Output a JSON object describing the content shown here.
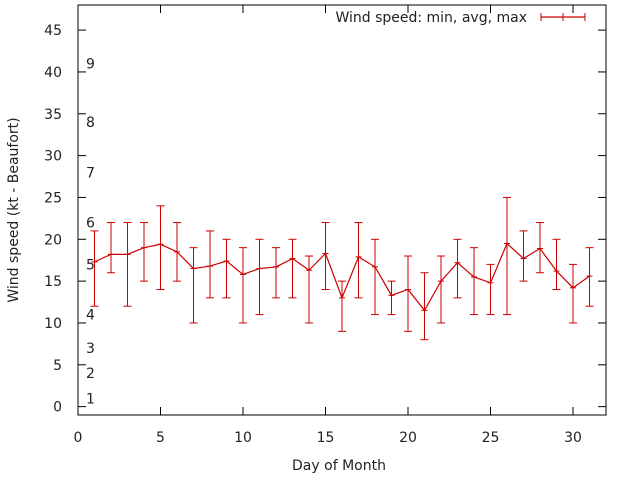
{
  "chart_data": {
    "type": "line",
    "xlabel": "Day of Month",
    "ylabel": "Wind speed (kt - Beaufort)",
    "xlim": [
      0,
      32
    ],
    "ylim": [
      -1,
      48
    ],
    "xticks": [
      "0",
      "5",
      "10",
      "15",
      "20",
      "25",
      "30"
    ],
    "yticks": [
      "0",
      "5",
      "10",
      "15",
      "20",
      "25",
      "30",
      "35",
      "40",
      "45"
    ],
    "beaufort_scale": [
      {
        "label": "1",
        "kt": 1
      },
      {
        "label": "2",
        "kt": 4
      },
      {
        "label": "3",
        "kt": 7
      },
      {
        "label": "4",
        "kt": 11
      },
      {
        "label": "5",
        "kt": 17
      },
      {
        "label": "6",
        "kt": 22
      },
      {
        "label": "7",
        "kt": 28
      },
      {
        "label": "8",
        "kt": 34
      },
      {
        "label": "9",
        "kt": 41
      }
    ],
    "grid": false,
    "legend": "top-right",
    "series": [
      {
        "name": "Wind speed: min, avg, max",
        "color": "#cc0000",
        "x": [
          1,
          2,
          3,
          4,
          5,
          6,
          7,
          8,
          9,
          10,
          11,
          12,
          13,
          14,
          15,
          16,
          17,
          18,
          19,
          20,
          21,
          22,
          23,
          24,
          25,
          26,
          27,
          28,
          29,
          30,
          31
        ],
        "avg": [
          17.3,
          18.2,
          18.2,
          19.0,
          19.4,
          18.5,
          16.5,
          16.8,
          17.4,
          15.8,
          16.5,
          16.7,
          17.7,
          16.3,
          18.3,
          13.0,
          17.9,
          16.7,
          13.3,
          14.0,
          11.5,
          15.0,
          17.2,
          15.5,
          14.8,
          19.5,
          17.7,
          18.9,
          16.2,
          14.2,
          15.6
        ],
        "min": [
          12,
          16,
          12,
          15,
          14,
          15,
          10,
          13,
          13,
          10,
          11,
          13,
          13,
          10,
          14,
          9,
          13,
          11,
          11,
          9,
          8,
          10,
          13,
          11,
          11,
          11,
          15,
          16,
          14,
          10,
          12
        ],
        "max": [
          21,
          22,
          22,
          22,
          24,
          22,
          19,
          21,
          20,
          19,
          20,
          19,
          20,
          18,
          22,
          15,
          22,
          20,
          15,
          18,
          16,
          18,
          20,
          19,
          17,
          25,
          21,
          22,
          20,
          17,
          19
        ]
      }
    ]
  }
}
